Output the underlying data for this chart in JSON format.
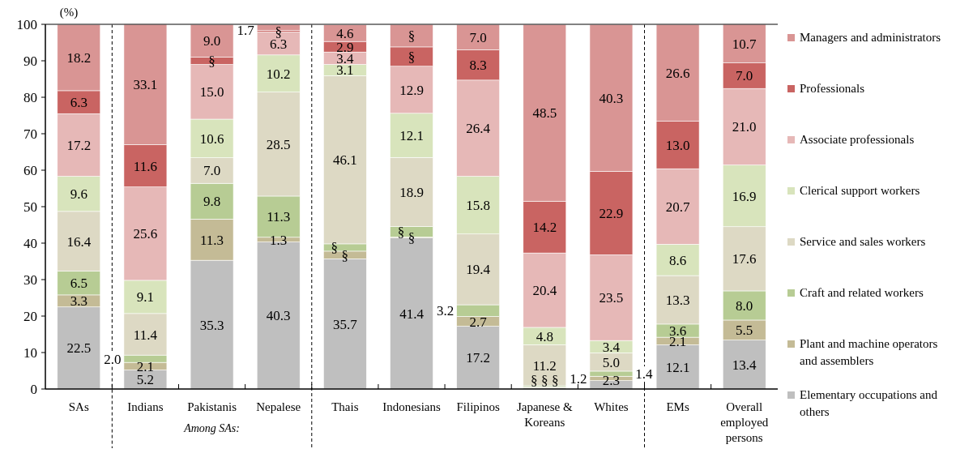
{
  "chart_data": {
    "type": "bar",
    "stacked": true,
    "ylabel": "(%)",
    "ylim": [
      0,
      100
    ],
    "yticks": [
      0,
      10,
      20,
      30,
      40,
      50,
      60,
      70,
      80,
      90,
      100
    ],
    "grid": false,
    "legend": "right",
    "categories": [
      "SAs",
      "Indians",
      "Pakistanis",
      "Nepalese",
      "Thais",
      "Indonesians",
      "Filipinos",
      "Japanese & Koreans",
      "Whites",
      "EMs",
      "Overall employed persons"
    ],
    "annotations": [
      "Among SAs:"
    ],
    "series": [
      {
        "name": "Elementary occupations and others",
        "color": "#bfbfbf",
        "values": [
          22.5,
          5.2,
          35.3,
          40.3,
          35.7,
          41.4,
          17.2,
          0.3,
          2.3,
          12.1,
          13.4
        ],
        "value_labels": [
          "22.5",
          "5.2",
          "35.3",
          "40.3",
          "35.7",
          "41.4",
          "17.2",
          "§",
          "2.3",
          "12.1",
          "13.4"
        ]
      },
      {
        "name": "Plant and machine operators and assemblers",
        "color": "#c4bb96",
        "values": [
          3.3,
          2.1,
          11.3,
          1.3,
          2.1,
          0.3,
          2.7,
          0.3,
          1.2,
          2.1,
          5.5
        ],
        "value_labels": [
          "3.3",
          "2.1",
          "11.3",
          "1.3",
          "§",
          "§",
          "2.7",
          "§",
          "1.2",
          "2.1",
          "5.5"
        ]
      },
      {
        "name": "Craft and related workers",
        "color": "#b7cc94",
        "values": [
          6.5,
          2.0,
          9.8,
          11.3,
          2.0,
          2.9,
          3.2,
          0.3,
          1.4,
          3.6,
          8.0
        ],
        "value_labels": [
          "6.5",
          "2.0",
          "9.8",
          "11.3",
          "§",
          "§",
          "3.2",
          "§",
          "1.4",
          "3.6",
          "8.0"
        ]
      },
      {
        "name": "Service and sales workers",
        "color": "#ddd9c4",
        "values": [
          16.4,
          11.4,
          7.0,
          28.5,
          46.1,
          18.9,
          19.4,
          11.2,
          5.0,
          13.3,
          17.6
        ],
        "value_labels": [
          "16.4",
          "11.4",
          "7.0",
          "28.5",
          "46.1",
          "18.9",
          "19.4",
          "11.2",
          "5.0",
          "13.3",
          "17.6"
        ]
      },
      {
        "name": "Clerical support workers",
        "color": "#d8e4bc",
        "values": [
          9.6,
          9.1,
          10.6,
          10.2,
          3.1,
          12.1,
          15.8,
          4.8,
          3.4,
          8.6,
          16.9
        ],
        "value_labels": [
          "9.6",
          "9.1",
          "10.6",
          "10.2",
          "3.1",
          "12.1",
          "15.8",
          "4.8",
          "3.4",
          "8.6",
          "16.9"
        ]
      },
      {
        "name": "Associate professionals",
        "color": "#e6b8b7",
        "values": [
          17.2,
          25.6,
          15.0,
          6.3,
          3.4,
          12.9,
          26.4,
          20.4,
          23.5,
          20.7,
          21.0
        ],
        "value_labels": [
          "17.2",
          "25.6",
          "15.0",
          "6.3",
          "3.4",
          "12.9",
          "26.4",
          "20.4",
          "23.5",
          "20.7",
          "21.0"
        ]
      },
      {
        "name": "Professionals",
        "color": "#c96462",
        "values": [
          6.3,
          11.6,
          2.0,
          0.4,
          2.9,
          5.3,
          8.3,
          14.2,
          22.9,
          13.0,
          7.0
        ],
        "value_labels": [
          "6.3",
          "11.6",
          "§",
          "§",
          "2.9",
          "§",
          "8.3",
          "14.2",
          "22.9",
          "13.0",
          "7.0"
        ]
      },
      {
        "name": "Managers and administrators",
        "color": "#d99594",
        "values": [
          18.2,
          33.1,
          9.0,
          1.7,
          4.6,
          6.2,
          7.0,
          48.5,
          40.3,
          26.6,
          10.7
        ],
        "value_labels": [
          "18.2",
          "33.1",
          "9.0",
          "1.7",
          "4.6",
          "§",
          "7.0",
          "48.5",
          "40.3",
          "26.6",
          "10.7"
        ]
      }
    ]
  }
}
